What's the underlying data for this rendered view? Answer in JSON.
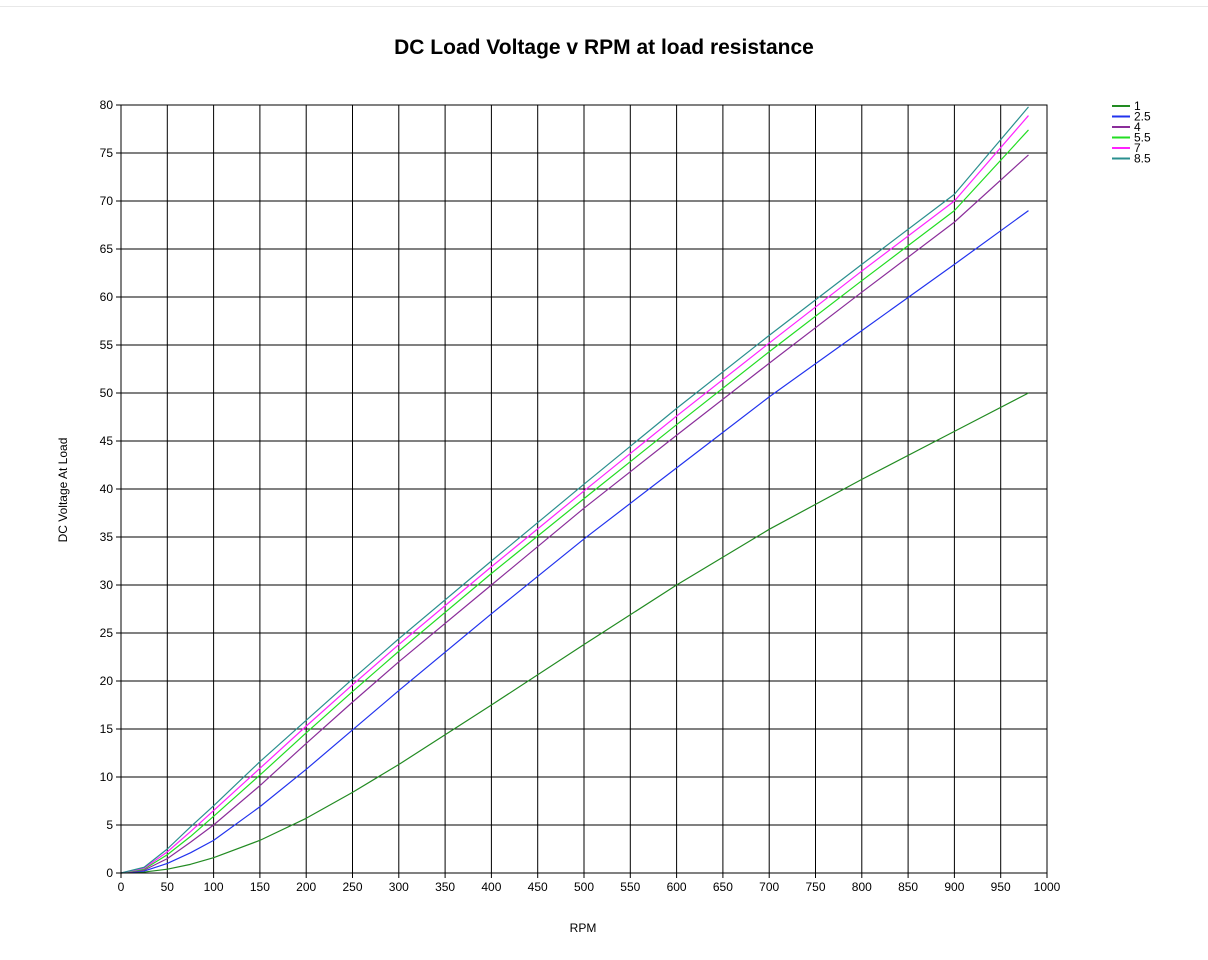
{
  "chart_data": {
    "type": "line",
    "title": "DC Load Voltage v RPM at load resistance",
    "xlabel": "RPM",
    "ylabel": "DC Voltage At Load",
    "xlim": [
      0,
      1000
    ],
    "ylim": [
      0,
      80
    ],
    "x_ticks": [
      0,
      50,
      100,
      150,
      200,
      250,
      300,
      350,
      400,
      450,
      500,
      550,
      600,
      650,
      700,
      750,
      800,
      850,
      900,
      950,
      1000
    ],
    "y_ticks": [
      0,
      5,
      10,
      15,
      20,
      25,
      30,
      35,
      40,
      45,
      50,
      55,
      60,
      65,
      70,
      75,
      80
    ],
    "grid": true,
    "legend_position": "top-right",
    "x": [
      0,
      25,
      50,
      75,
      100,
      150,
      200,
      250,
      300,
      400,
      500,
      600,
      700,
      800,
      900,
      980
    ],
    "series": [
      {
        "name": "1",
        "color": "#228B22",
        "values": [
          0,
          0.1,
          0.4,
          0.9,
          1.6,
          3.4,
          5.7,
          8.4,
          11.3,
          17.5,
          23.8,
          30.0,
          35.8,
          41.0,
          46.0,
          50.0
        ]
      },
      {
        "name": "2.5",
        "color": "#2233ee",
        "values": [
          0,
          0.2,
          1.0,
          2.1,
          3.4,
          6.9,
          10.8,
          14.9,
          19.0,
          27.0,
          34.8,
          42.2,
          49.6,
          56.5,
          63.4,
          69.0
        ]
      },
      {
        "name": "4",
        "color": "#8b2e9a",
        "values": [
          0,
          0.3,
          1.5,
          3.2,
          5.0,
          9.1,
          13.5,
          17.8,
          22.0,
          30.0,
          38.0,
          45.6,
          53.1,
          60.5,
          67.8,
          74.8
        ]
      },
      {
        "name": "5.5",
        "color": "#22dd22",
        "values": [
          0,
          0.4,
          1.9,
          3.8,
          5.9,
          10.2,
          14.6,
          18.9,
          23.1,
          31.2,
          39.0,
          46.7,
          54.3,
          61.7,
          69.0,
          77.4
        ]
      },
      {
        "name": "7",
        "color": "#ff22ff",
        "values": [
          0,
          0.5,
          2.2,
          4.3,
          6.5,
          10.9,
          15.3,
          19.6,
          23.8,
          31.9,
          39.8,
          47.6,
          55.2,
          62.7,
          70.0,
          78.9
        ]
      },
      {
        "name": "8.5",
        "color": "#2a8f8f",
        "values": [
          0,
          0.6,
          2.5,
          4.8,
          7.0,
          11.6,
          15.9,
          20.2,
          24.4,
          32.5,
          40.5,
          48.4,
          56.0,
          63.4,
          70.7,
          79.8
        ]
      }
    ]
  }
}
